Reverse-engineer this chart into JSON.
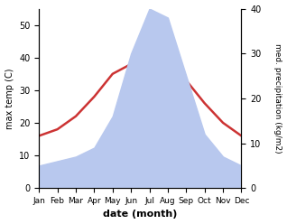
{
  "months": [
    "Jan",
    "Feb",
    "Mar",
    "Apr",
    "May",
    "Jun",
    "Jul",
    "Aug",
    "Sep",
    "Oct",
    "Nov",
    "Dec"
  ],
  "temperature": [
    16,
    18,
    22,
    28,
    35,
    38,
    40,
    39,
    33,
    26,
    20,
    16
  ],
  "precipitation": [
    5,
    6,
    7,
    9,
    16,
    30,
    40,
    38,
    25,
    12,
    7,
    5
  ],
  "temp_color": "#cc3333",
  "precip_fill_color": "#b8c8ee",
  "ylabel_left": "max temp (C)",
  "ylabel_right": "med. precipitation (kg/m2)",
  "xlabel": "date (month)",
  "ylim_left": [
    0,
    55
  ],
  "ylim_right": [
    0,
    40
  ],
  "background_color": "#ffffff",
  "line_width": 1.8
}
